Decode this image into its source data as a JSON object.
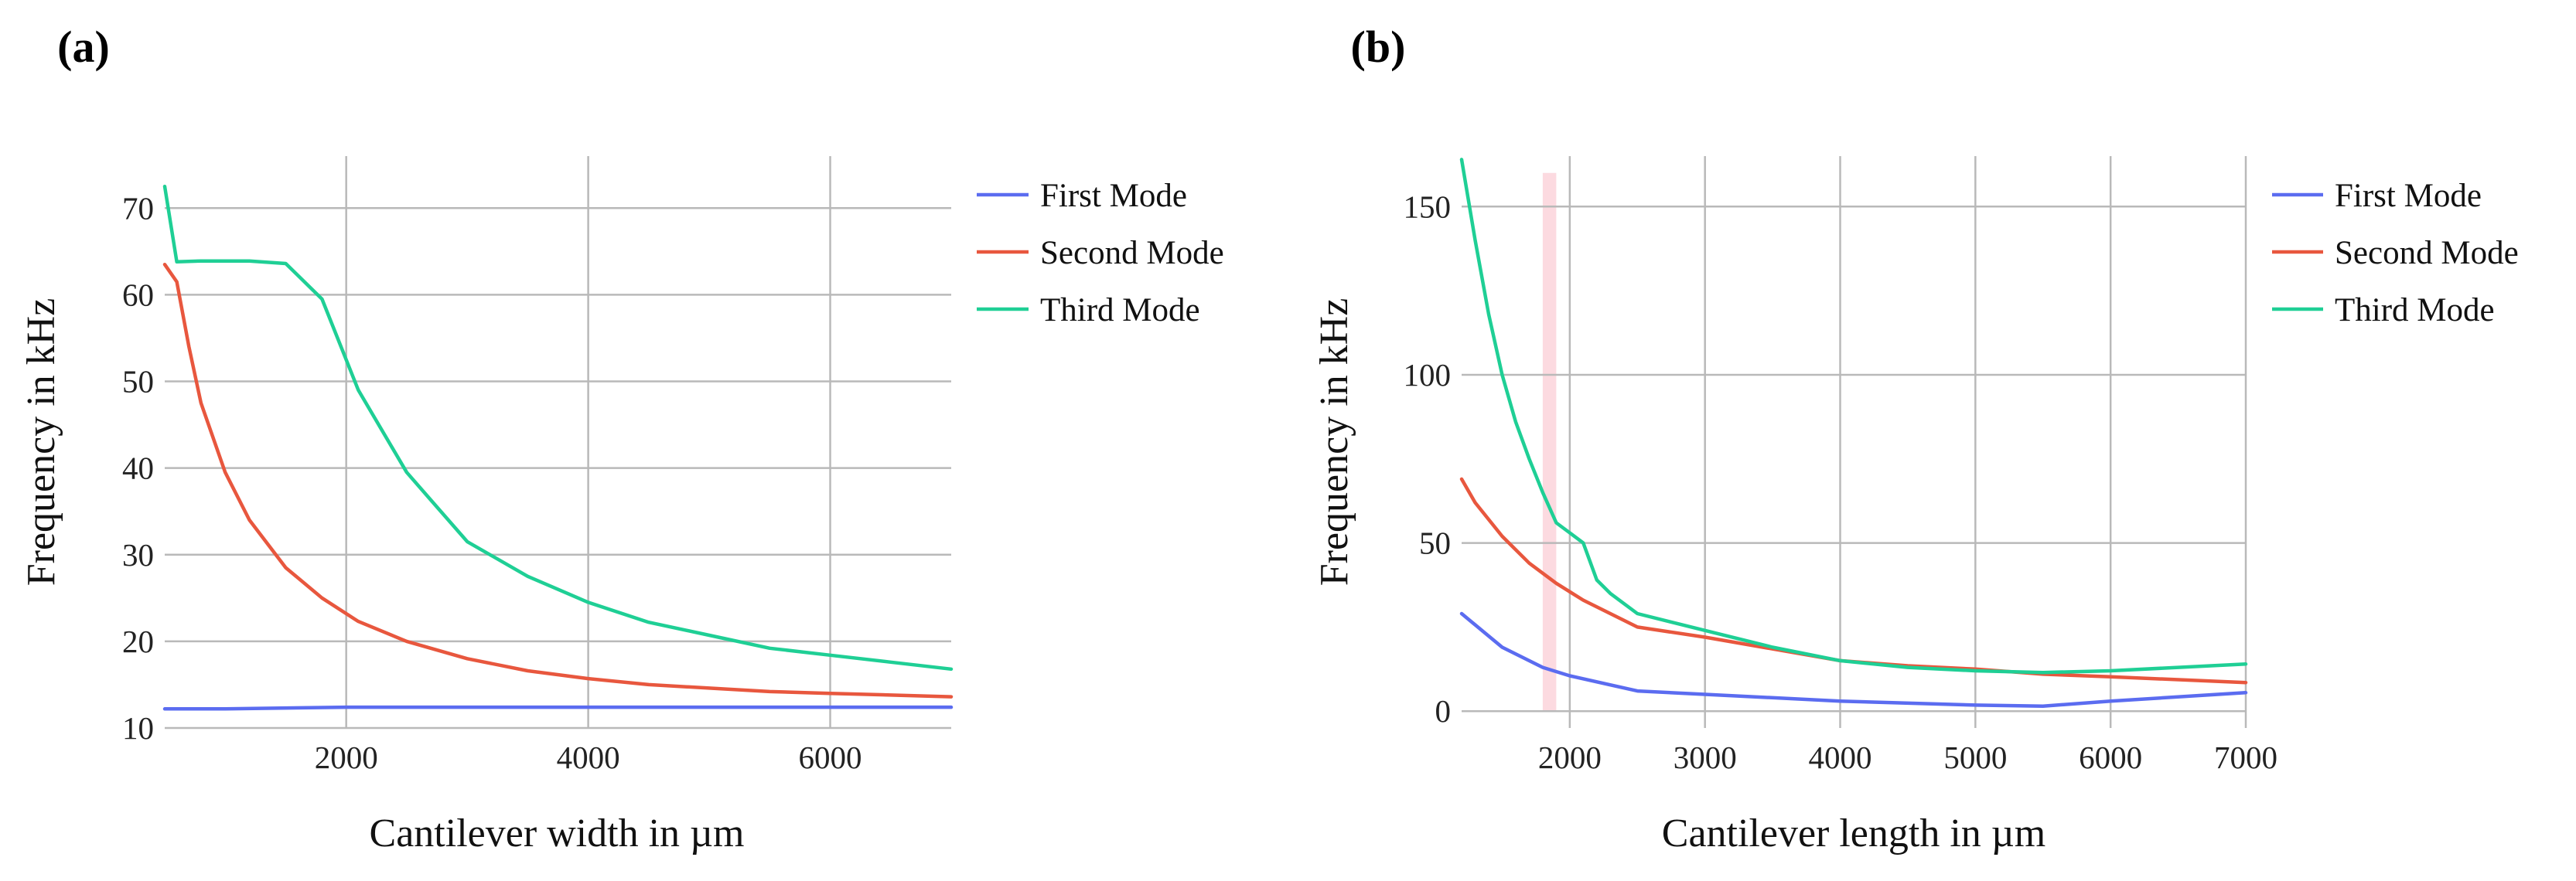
{
  "chart_data": [
    {
      "panel_label": "(a)",
      "type": "line",
      "xlabel": "Cantilever width in µm",
      "ylabel": "Frequency in kHz",
      "xlim": [
        500,
        7000
      ],
      "ylim": [
        10,
        76
      ],
      "xticks": [
        2000,
        4000,
        6000
      ],
      "yticks": [
        10,
        20,
        30,
        40,
        50,
        60,
        70
      ],
      "legend_position": "right",
      "series": [
        {
          "name": "First Mode",
          "color": "#5b6cf0",
          "x": [
            500,
            1000,
            2000,
            3000,
            4000,
            5000,
            6000,
            7000
          ],
          "y": [
            12.2,
            12.2,
            12.4,
            12.4,
            12.4,
            12.4,
            12.4,
            12.4
          ]
        },
        {
          "name": "Second Mode",
          "color": "#e8573e",
          "x": [
            500,
            600,
            700,
            800,
            1000,
            1200,
            1500,
            1800,
            2100,
            2500,
            3000,
            3500,
            4000,
            4500,
            5000,
            5500,
            6000,
            6500,
            7000
          ],
          "y": [
            63.5,
            61.5,
            54,
            47.5,
            39.5,
            34,
            28.5,
            25,
            22.3,
            20,
            18,
            16.6,
            15.7,
            15.0,
            14.6,
            14.2,
            14.0,
            13.8,
            13.6
          ]
        },
        {
          "name": "Third Mode",
          "color": "#1fcf95",
          "x": [
            500,
            600,
            800,
            1000,
            1200,
            1500,
            1800,
            2100,
            2500,
            2700,
            3000,
            3500,
            4000,
            4500,
            5000,
            5500,
            6000,
            6500,
            7000
          ],
          "y": [
            72.5,
            63.8,
            63.9,
            63.9,
            63.9,
            63.6,
            59.5,
            49,
            39.5,
            36.3,
            31.5,
            27.5,
            24.5,
            22.2,
            20.7,
            19.2,
            18.4,
            17.6,
            16.8
          ]
        }
      ]
    },
    {
      "panel_label": "(b)",
      "type": "line",
      "xlabel": "Cantilever length in µm",
      "ylabel": "Frequency in kHz",
      "xlim": [
        1200,
        7000
      ],
      "ylim": [
        -5,
        165
      ],
      "xticks": [
        2000,
        3000,
        4000,
        5000,
        6000,
        7000
      ],
      "yticks": [
        0,
        50,
        100,
        150
      ],
      "legend_position": "right",
      "highlight_band": [
        1800,
        1900
      ],
      "series": [
        {
          "name": "First Mode",
          "color": "#5b6cf0",
          "x": [
            1200,
            1500,
            1800,
            2000,
            2500,
            3000,
            4000,
            5000,
            5500,
            6000,
            7000
          ],
          "y": [
            29,
            19,
            13,
            10.5,
            6,
            5,
            3,
            1.8,
            1.5,
            3,
            5.5
          ]
        },
        {
          "name": "Second Mode",
          "color": "#e8573e",
          "x": [
            1200,
            1300,
            1500,
            1700,
            1900,
            2100,
            2500,
            3000,
            3500,
            4000,
            4500,
            5000,
            5500,
            6000,
            7000
          ],
          "y": [
            69,
            62,
            52,
            44,
            38,
            33,
            25,
            22,
            18.5,
            15,
            13.5,
            12.5,
            11,
            10.2,
            8.5
          ]
        },
        {
          "name": "Third Mode",
          "color": "#1fcf95",
          "x": [
            1200,
            1300,
            1400,
            1500,
            1600,
            1700,
            1800,
            1900,
            2000,
            2100,
            2200,
            2300,
            2500,
            3000,
            3500,
            4000,
            4500,
            5000,
            5500,
            6000,
            6500,
            7000
          ],
          "y": [
            164,
            140,
            118,
            100,
            86,
            75,
            65,
            56,
            53,
            50,
            39,
            35,
            29,
            24,
            19,
            15,
            13,
            12,
            11.5,
            12,
            13,
            14
          ]
        }
      ]
    }
  ]
}
